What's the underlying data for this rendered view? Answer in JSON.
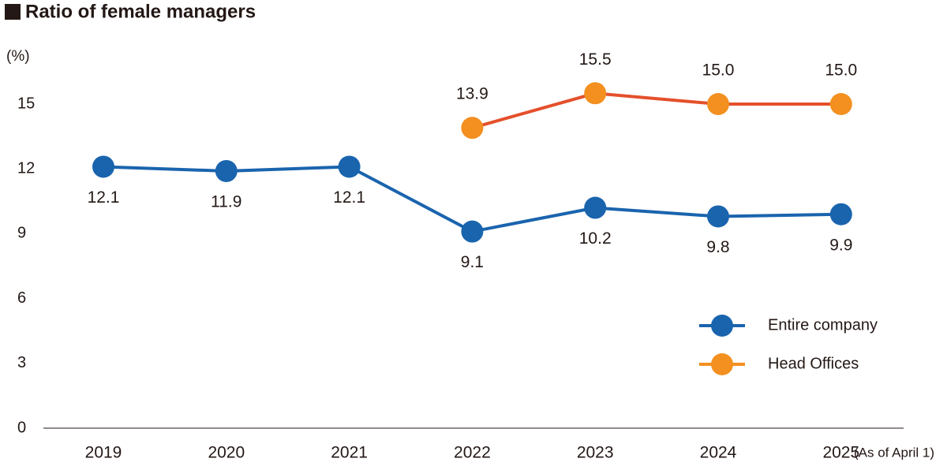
{
  "chart_data": {
    "type": "line",
    "title": "Ratio of female managers",
    "y_label": "(%)",
    "x_note": "(As of April 1)",
    "categories": [
      "2019",
      "2020",
      "2021",
      "2022",
      "2023",
      "2024",
      "2025"
    ],
    "series": [
      {
        "name": "Entire company",
        "color": "#1a64ae",
        "line_color": "#1a64ae",
        "values": [
          12.1,
          11.9,
          12.1,
          9.1,
          10.2,
          9.8,
          9.9
        ],
        "value_labels": [
          "12.1",
          "11.9",
          "12.1",
          "9.1",
          "10.2",
          "9.8",
          "9.9"
        ]
      },
      {
        "name": "Head Offices",
        "color": "#f39020",
        "line_color": "#e4502b",
        "values": [
          null,
          null,
          null,
          13.9,
          15.5,
          15.0,
          15.0
        ],
        "value_labels": [
          null,
          null,
          null,
          "13.9",
          "15.5",
          "15.0",
          "15.0"
        ]
      }
    ],
    "ylim": [
      0,
      15
    ],
    "yticks": [
      0,
      3,
      6,
      9,
      12,
      15
    ],
    "grid": false,
    "legend": "right"
  }
}
